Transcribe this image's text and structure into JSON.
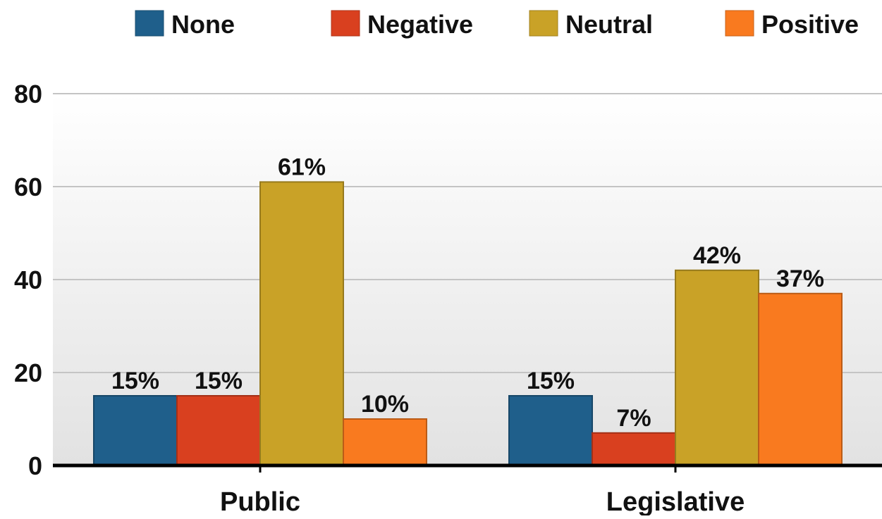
{
  "chart_data": {
    "type": "bar",
    "title": "",
    "xlabel": "",
    "ylabel": "",
    "categories": [
      "Public",
      "Legislative"
    ],
    "series": [
      {
        "name": "None",
        "values": [
          15,
          15
        ],
        "labels": [
          "15%",
          "15%"
        ],
        "color": "#1f5f8b"
      },
      {
        "name": "Negative",
        "values": [
          15,
          7
        ],
        "labels": [
          "15%",
          "7%"
        ],
        "color": "#d9401f"
      },
      {
        "name": "Neutral",
        "values": [
          61,
          42
        ],
        "labels": [
          "61%",
          "42%"
        ],
        "color": "#c9a227"
      },
      {
        "name": "Positive",
        "values": [
          10,
          37
        ],
        "labels": [
          "10%",
          "37%"
        ],
        "color": "#f97a1f"
      }
    ],
    "ylim": [
      0,
      80
    ],
    "yticks": [
      0,
      20,
      40,
      60,
      80
    ],
    "ytick_labels": [
      "0",
      "20",
      "40",
      "60",
      "80"
    ],
    "grid": true,
    "legend_position": "top"
  }
}
